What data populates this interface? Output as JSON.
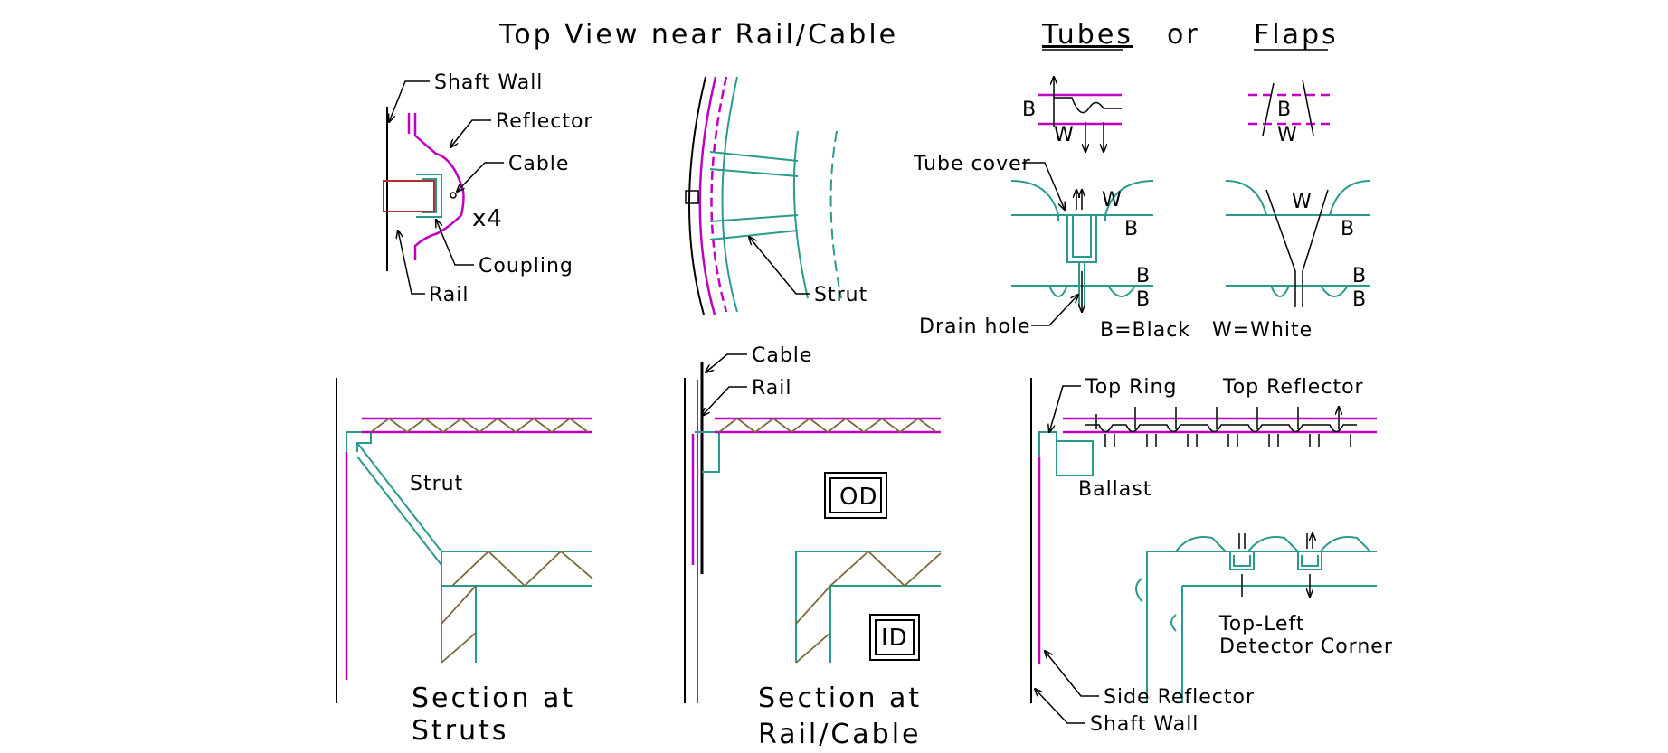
{
  "colors": {
    "wall": "#000000",
    "reflector": "#c000c0",
    "structure": "#2a9a8f",
    "truss": "#7a6a3a",
    "rail": "#b03030"
  },
  "top_view": {
    "title": "Top View near Rail/Cable",
    "labels": {
      "shaft_wall": "Shaft Wall",
      "reflector": "Reflector",
      "cable": "Cable",
      "multiplier": "x4",
      "coupling": "Coupling",
      "rail": "Rail",
      "strut": "Strut"
    }
  },
  "options": {
    "tubes": "Tubes",
    "or": "or",
    "flaps": "Flaps",
    "tube_cover": "Tube cover",
    "drain_hole": "Drain hole",
    "b": "B",
    "w": "W",
    "legend_black": "B=Black",
    "legend_white": "W=White"
  },
  "section_struts": {
    "strut": "Strut",
    "title_line1": "Section at",
    "title_line2": "Struts"
  },
  "section_rail": {
    "cable": "Cable",
    "rail": "Rail",
    "od": "OD",
    "id": "ID",
    "title_line1": "Section at",
    "title_line2": "Rail/Cable"
  },
  "top_left": {
    "top_ring": "Top Ring",
    "top_reflector": "Top Reflector",
    "ballast": "Ballast",
    "detector_line1": "Top-Left",
    "detector_line2": "Detector Corner",
    "side_reflector": "Side Reflector",
    "shaft_wall": "Shaft Wall"
  }
}
